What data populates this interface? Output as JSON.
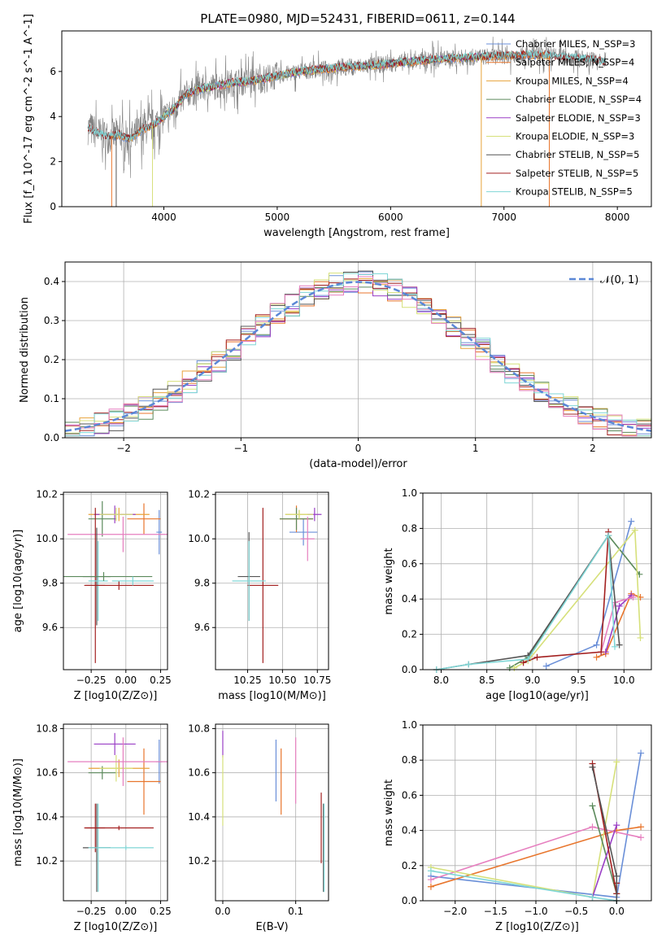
{
  "figure_title": "PLATE=0980, MJD=52431, FIBERID=0611, z=0.144",
  "colors": {
    "chabrier_miles": "#6a8fd8",
    "salpeter_miles": "#e8762d",
    "kroupa_miles": "#e8a23a",
    "chabrier_elodie": "#5c8a5c",
    "salpeter_elodie": "#9a3fc6",
    "kroupa_elodie": "#d6e07a",
    "chabrier_stelib": "#555555",
    "salpeter_stelib": "#a32020",
    "kroupa_stelib": "#7fd6d6",
    "pink": "#e67fbf",
    "gaussian": "#5b87d6",
    "data_spectrum": "#808080"
  },
  "chart_data": [
    {
      "id": "spectrum",
      "type": "line",
      "title": "PLATE=0980, MJD=52431, FIBERID=0611, z=0.144",
      "xlabel": "wavelength [Angstrom, rest frame]",
      "ylabel": "Flux [f_λ 10^-17 erg cm^-2 s^-1 A^-1]",
      "xlim": [
        3100,
        8300
      ],
      "ylim": [
        0,
        7.8
      ],
      "xticks": [
        4000,
        5000,
        6000,
        7000,
        8000
      ],
      "yticks": [
        0,
        2,
        4,
        6
      ],
      "grid": false,
      "legend_position": "top-right",
      "legend": [
        "Chabrier MILES, N_SSP=3",
        "Salpeter MILES, N_SSP=4",
        "Kroupa MILES, N_SSP=4",
        "Chabrier ELODIE, N_SSP=4",
        "Salpeter ELODIE, N_SSP=3",
        "Kroupa ELODIE, N_SSP=3",
        "Chabrier STELIB, N_SSP=5",
        "Salpeter STELIB, N_SSP=5",
        "Kroupa STELIB, N_SSP=5"
      ],
      "continuum": {
        "x": [
          3330,
          3400,
          3500,
          3600,
          3700,
          3800,
          3900,
          4000,
          4100,
          4200,
          4300,
          4400,
          4600,
          4800,
          5000,
          5200,
          5400,
          5600,
          5800,
          6000,
          6200,
          6400,
          6600,
          6800,
          7000,
          7200,
          7400,
          7600,
          7800,
          7900
        ],
        "y": [
          3.5,
          3.3,
          3.1,
          3.2,
          3.0,
          3.4,
          3.6,
          4.0,
          4.4,
          5.0,
          5.2,
          5.3,
          5.5,
          5.6,
          5.8,
          6.0,
          6.1,
          6.2,
          6.25,
          6.35,
          6.45,
          6.55,
          6.6,
          6.65,
          6.7,
          6.75,
          6.7,
          6.6,
          6.5,
          6.4
        ]
      }
    },
    {
      "id": "residuals",
      "type": "step",
      "xlabel": "(data-model)/error",
      "ylabel": "Normed distribution",
      "xlim": [
        -2.5,
        2.5
      ],
      "ylim": [
        0,
        0.45
      ],
      "xticks": [
        -2,
        -1,
        0,
        1,
        2
      ],
      "yticks": [
        0.0,
        0.1,
        0.2,
        0.3,
        0.4
      ],
      "grid": true,
      "legend_position": "top-right",
      "legend": [
        "𝒩(0, 1)"
      ],
      "bins": 40
    },
    {
      "id": "age_vs_Z",
      "type": "errorbar",
      "xlabel": "Z [log10(Z/Z⊙)]",
      "ylabel": "age [log10(age/yr)]",
      "xlim": [
        -0.45,
        0.3
      ],
      "ylim": [
        9.41,
        10.21
      ],
      "xticks": [
        -0.25,
        0.0,
        0.25
      ],
      "yticks": [
        9.6,
        9.8,
        10.0,
        10.2
      ],
      "grid": true,
      "points": [
        {
          "c": "chabrier_miles",
          "x": 0.24,
          "xe": 0.02,
          "y": 10.03,
          "ye": 0.1
        },
        {
          "c": "salpeter_miles",
          "x": 0.13,
          "xe": 0.12,
          "y": 10.09,
          "ye": 0.07
        },
        {
          "c": "kroupa_miles",
          "x": -0.05,
          "xe": 0.22,
          "y": 10.11,
          "ye": 0.03
        },
        {
          "c": "chabrier_elodie",
          "x": -0.17,
          "xe": 0.1,
          "y": 10.09,
          "ye": 0.08
        },
        {
          "c": "salpeter_elodie",
          "x": -0.08,
          "xe": 0.15,
          "y": 10.11,
          "ye": 0.04
        },
        {
          "c": "kroupa_elodie",
          "x": -0.07,
          "xe": 0.12,
          "y": 10.11,
          "ye": 0.03
        },
        {
          "c": "pink",
          "x": -0.02,
          "xe": 0.4,
          "y": 10.02,
          "ye": 0.08
        },
        {
          "c": "chabrier_stelib",
          "x": -0.21,
          "xe": 0.1,
          "y": 9.83,
          "ye": 0.22
        },
        {
          "c": "salpeter_stelib",
          "x": -0.22,
          "xe": 0.07,
          "y": 9.79,
          "ye": 0.35
        },
        {
          "c": "kroupa_stelib",
          "x": -0.2,
          "xe": 0.07,
          "y": 9.81,
          "ye": 0.18
        },
        {
          "c": "chabrier_elodie",
          "x": -0.16,
          "xe": 0.35,
          "y": 9.83,
          "ye": 0.02
        },
        {
          "c": "salpeter_stelib",
          "x": -0.05,
          "xe": 0.25,
          "y": 9.79,
          "ye": 0.02
        },
        {
          "c": "kroupa_stelib",
          "x": 0.05,
          "xe": 0.15,
          "y": 9.81,
          "ye": 0.02
        }
      ]
    },
    {
      "id": "age_vs_mass",
      "type": "errorbar",
      "xlabel": "mass [log10(M/M⊙)]",
      "ylabel": "",
      "xlim": [
        10.02,
        10.83
      ],
      "ylim": [
        9.41,
        10.21
      ],
      "xticks": [
        10.25,
        10.5,
        10.75
      ],
      "yticks": [
        9.6,
        9.8,
        10.0,
        10.2
      ],
      "grid": true,
      "points": [
        {
          "c": "chabrier_miles",
          "x": 10.65,
          "xe": 0.1,
          "y": 10.03,
          "ye": 0.06
        },
        {
          "c": "salpeter_miles",
          "x": 10.6,
          "xe": 0.12,
          "y": 10.09,
          "ye": 0.06
        },
        {
          "c": "kroupa_miles",
          "x": 10.62,
          "xe": 0.1,
          "y": 10.11,
          "ye": 0.02
        },
        {
          "c": "chabrier_elodie",
          "x": 10.6,
          "xe": 0.12,
          "y": 10.09,
          "ye": 0.05
        },
        {
          "c": "salpeter_elodie",
          "x": 10.73,
          "xe": 0.05,
          "y": 10.11,
          "ye": 0.03
        },
        {
          "c": "kroupa_elodie",
          "x": 10.62,
          "xe": 0.1,
          "y": 10.11,
          "ye": 0.02
        },
        {
          "c": "pink",
          "x": 10.68,
          "xe": 0.05,
          "y": 10.0,
          "ye": 0.1
        },
        {
          "c": "chabrier_stelib",
          "x": 10.26,
          "xe": 0.08,
          "y": 9.83,
          "ye": 0.2
        },
        {
          "c": "salpeter_stelib",
          "x": 10.36,
          "xe": 0.11,
          "y": 9.79,
          "ye": 0.35
        },
        {
          "c": "kroupa_stelib",
          "x": 10.26,
          "xe": 0.12,
          "y": 9.81,
          "ye": 0.18
        }
      ]
    },
    {
      "id": "weight_vs_age",
      "type": "line",
      "xlabel": "age [log10(age/yr)]",
      "ylabel": "mass weight",
      "xlim": [
        7.8,
        10.3
      ],
      "ylim": [
        0,
        1
      ],
      "xticks": [
        8.0,
        8.5,
        9.0,
        9.5,
        10.0
      ],
      "yticks": [
        0.0,
        0.2,
        0.4,
        0.6,
        0.8,
        1.0
      ],
      "grid": true,
      "series": [
        {
          "c": "chabrier_miles",
          "x": [
            9.15,
            9.7,
            10.08
          ],
          "y": [
            0.02,
            0.14,
            0.84
          ]
        },
        {
          "c": "salpeter_miles",
          "x": [
            9.7,
            9.8,
            10.08,
            10.18
          ],
          "y": [
            0.07,
            0.09,
            0.43,
            0.41
          ]
        },
        {
          "c": "chabrier_elodie",
          "x": [
            8.75,
            8.95,
            9.83,
            10.17
          ],
          "y": [
            0.01,
            0.07,
            0.76,
            0.54
          ]
        },
        {
          "c": "salpeter_elodie",
          "x": [
            9.8,
            9.95,
            10.08
          ],
          "y": [
            0.1,
            0.36,
            0.42
          ]
        },
        {
          "c": "kroupa_elodie",
          "x": [
            8.8,
            8.95,
            10.12,
            10.18
          ],
          "y": [
            0.01,
            0.05,
            0.79,
            0.18
          ]
        },
        {
          "c": "pink",
          "x": [
            9.75,
            9.9,
            10.1
          ],
          "y": [
            0.1,
            0.38,
            0.41
          ]
        },
        {
          "c": "chabrier_stelib",
          "x": [
            7.95,
            8.3,
            8.95,
            9.83,
            9.95
          ],
          "y": [
            0.0,
            0.03,
            0.08,
            0.76,
            0.14
          ]
        },
        {
          "c": "salpeter_stelib",
          "x": [
            8.9,
            9.05,
            9.75,
            9.83
          ],
          "y": [
            0.04,
            0.07,
            0.1,
            0.78
          ]
        },
        {
          "c": "kroupa_stelib",
          "x": [
            7.95,
            8.3,
            8.95,
            9.83,
            9.9
          ],
          "y": [
            0.0,
            0.03,
            0.06,
            0.76,
            0.13
          ]
        }
      ]
    },
    {
      "id": "mass_vs_Z",
      "type": "errorbar",
      "xlabel": "Z [log10(Z/Z⊙)]",
      "ylabel": "mass [log10(M/M⊙)]",
      "xlim": [
        -0.45,
        0.3
      ],
      "ylim": [
        10.02,
        10.82
      ],
      "xticks": [
        -0.25,
        0.0,
        0.25
      ],
      "yticks": [
        10.2,
        10.4,
        10.6,
        10.8
      ],
      "grid": true,
      "points": [
        {
          "c": "chabrier_miles",
          "x": 0.24,
          "xe": 0.02,
          "y": 10.65,
          "ye": 0.1
        },
        {
          "c": "salpeter_miles",
          "x": 0.13,
          "xe": 0.12,
          "y": 10.56,
          "ye": 0.15
        },
        {
          "c": "kroupa_miles",
          "x": -0.05,
          "xe": 0.22,
          "y": 10.62,
          "ye": 0.04
        },
        {
          "c": "chabrier_elodie",
          "x": -0.17,
          "xe": 0.1,
          "y": 10.6,
          "ye": 0.03
        },
        {
          "c": "salpeter_elodie",
          "x": -0.08,
          "xe": 0.15,
          "y": 10.73,
          "ye": 0.05
        },
        {
          "c": "kroupa_elodie",
          "x": -0.07,
          "xe": 0.12,
          "y": 10.62,
          "ye": 0.06
        },
        {
          "c": "pink",
          "x": -0.02,
          "xe": 0.4,
          "y": 10.65,
          "ye": 0.11
        },
        {
          "c": "chabrier_stelib",
          "x": -0.21,
          "xe": 0.1,
          "y": 10.26,
          "ye": 0.2
        },
        {
          "c": "salpeter_stelib",
          "x": -0.22,
          "xe": 0.07,
          "y": 10.35,
          "ye": 0.11
        },
        {
          "c": "kroupa_stelib",
          "x": -0.2,
          "xe": 0.07,
          "y": 10.26,
          "ye": 0.2
        },
        {
          "c": "salpeter_stelib",
          "x": -0.05,
          "xe": 0.25,
          "y": 10.35,
          "ye": 0.01
        },
        {
          "c": "kroupa_stelib",
          "x": 0.0,
          "xe": 0.2,
          "y": 10.26,
          "ye": 0.01
        }
      ]
    },
    {
      "id": "mass_vs_ebv",
      "type": "errorbar",
      "xlabel": "E(B-V)",
      "ylabel": "",
      "xlim": [
        -0.01,
        0.145
      ],
      "ylim": [
        10.02,
        10.82
      ],
      "xticks": [
        0.0,
        0.1
      ],
      "yticks": [
        10.2,
        10.4,
        10.6,
        10.8
      ],
      "grid": true,
      "points": [
        {
          "c": "salpeter_elodie",
          "x": 0.0,
          "xe": 0,
          "y": 10.73,
          "ye": 0.06
        },
        {
          "c": "kroupa_elodie",
          "x": 0.0,
          "xe": 0,
          "y": 10.52,
          "ye": 0.16
        },
        {
          "c": "chabrier_miles",
          "x": 0.073,
          "xe": 0,
          "y": 10.61,
          "ye": 0.14
        },
        {
          "c": "salpeter_miles",
          "x": 0.08,
          "xe": 0,
          "y": 10.56,
          "ye": 0.15
        },
        {
          "c": "pink",
          "x": 0.1,
          "xe": 0,
          "y": 10.61,
          "ye": 0.15
        },
        {
          "c": "salpeter_stelib",
          "x": 0.135,
          "xe": 0,
          "y": 10.35,
          "ye": 0.16
        },
        {
          "c": "chabrier_stelib",
          "x": 0.138,
          "xe": 0,
          "y": 10.26,
          "ye": 0.2
        },
        {
          "c": "kroupa_stelib",
          "x": 0.139,
          "xe": 0,
          "y": 10.26,
          "ye": 0.2
        }
      ]
    },
    {
      "id": "weight_vs_Z",
      "type": "line",
      "xlabel": "Z [log10(Z/Z⊙)]",
      "ylabel": "mass weight",
      "xlim": [
        -2.4,
        0.43
      ],
      "ylim": [
        0,
        1
      ],
      "xticks": [
        -2.0,
        -1.5,
        -1.0,
        -0.5,
        0.0
      ],
      "yticks": [
        0.0,
        0.2,
        0.4,
        0.6,
        0.8,
        1.0
      ],
      "grid": true,
      "series": [
        {
          "c": "chabrier_miles",
          "x": [
            -2.3,
            0.0,
            0.3
          ],
          "y": [
            0.14,
            0.02,
            0.84
          ]
        },
        {
          "c": "salpeter_miles",
          "x": [
            -2.3,
            0.0,
            0.3
          ],
          "y": [
            0.08,
            0.4,
            0.42
          ]
        },
        {
          "c": "pink",
          "x": [
            -2.3,
            -0.3,
            0.3
          ],
          "y": [
            0.12,
            0.42,
            0.36
          ]
        },
        {
          "c": "kroupa_elodie",
          "x": [
            -2.3,
            -0.3,
            0.0
          ],
          "y": [
            0.19,
            0.02,
            0.79
          ]
        },
        {
          "c": "chabrier_elodie",
          "x": [
            -0.3,
            0.0
          ],
          "y": [
            0.54,
            0.04
          ]
        },
        {
          "c": "salpeter_elodie",
          "x": [
            -0.3,
            0.0
          ],
          "y": [
            0.02,
            0.43
          ]
        },
        {
          "c": "salpeter_stelib",
          "x": [
            -0.3,
            0.0,
            0.0
          ],
          "y": [
            0.78,
            0.04,
            0.1
          ]
        },
        {
          "c": "kroupa_stelib",
          "x": [
            -2.3,
            -0.3,
            0.0
          ],
          "y": [
            0.17,
            0.02,
            0.0
          ]
        },
        {
          "c": "chabrier_stelib",
          "x": [
            -0.3,
            0.0,
            0.0
          ],
          "y": [
            0.76,
            0.14,
            0.0
          ]
        }
      ]
    }
  ]
}
